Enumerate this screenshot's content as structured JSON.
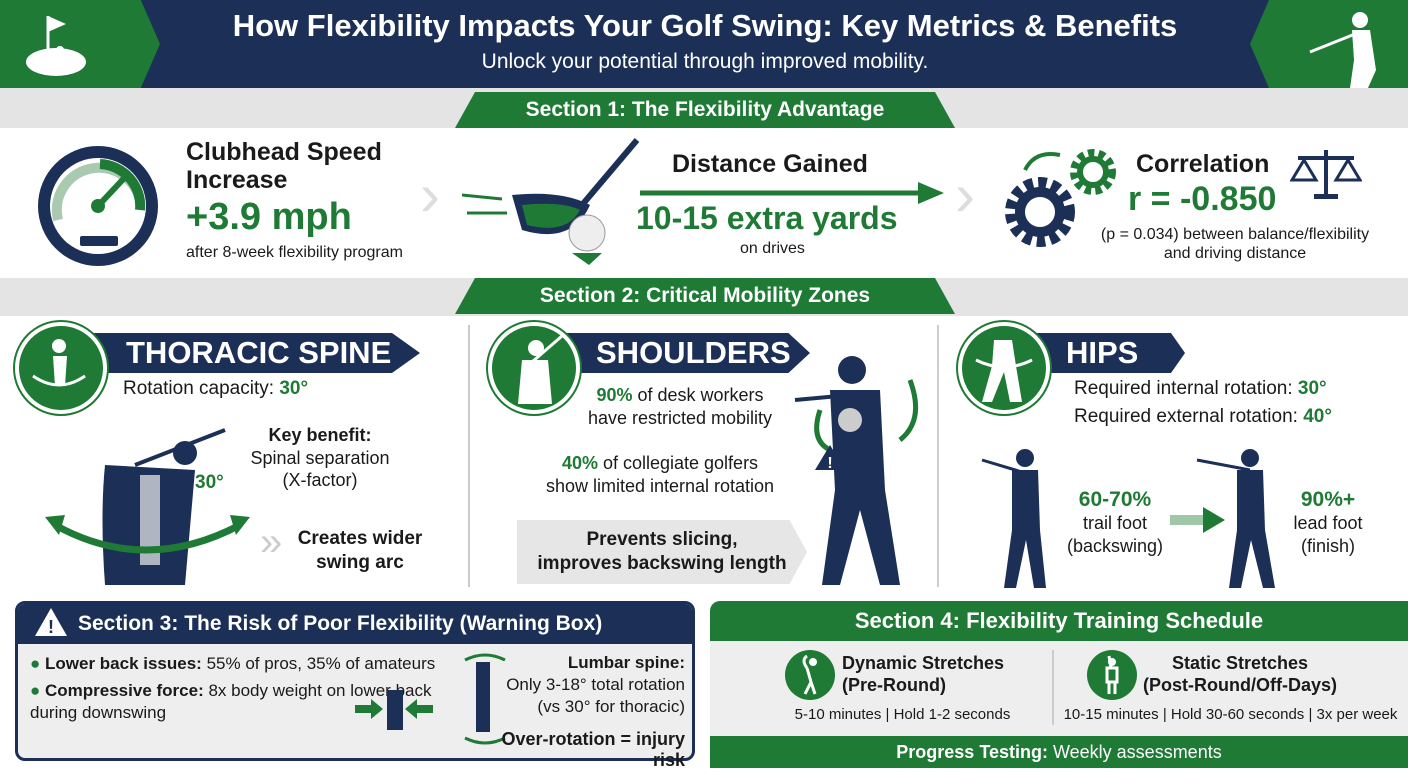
{
  "header": {
    "title": "How Flexibility Impacts Your Golf Swing: Key Metrics & Benefits",
    "subtitle": "Unlock your potential through improved mobility.",
    "left_icon": "golf-flag-icon",
    "right_icon": "golfer-silhouette-icon"
  },
  "colors": {
    "navy": "#1b2f57",
    "green": "#1f7a35",
    "band": "#e4e4e4"
  },
  "section1": {
    "title": "Section 1: The Flexibility Advantage",
    "speed": {
      "label": "Clubhead Speed Increase",
      "value": "+3.9 mph",
      "note": "after 8-week flexibility program",
      "icon": "speedometer-icon"
    },
    "distance": {
      "label": "Distance Gained",
      "value": "10-15 extra yards",
      "note": "on drives",
      "icon": "golf-club-ball-icon"
    },
    "correlation": {
      "label": "Correlation",
      "value": "r = -0.850",
      "note1": "(p = 0.034) between balance/flexibility",
      "note2": "and driving distance",
      "icon": "gears-icon",
      "icon2": "scales-icon"
    }
  },
  "section2": {
    "title": "Section 2: Critical Mobility Zones",
    "thoracic": {
      "title": "THORACIC SPINE",
      "capacity_label": "Rotation capacity: ",
      "capacity": "30°",
      "angle": "30°",
      "benefit_label": "Key benefit:",
      "benefit1": "Spinal separation",
      "benefit2": "(X-factor)",
      "result1": "Creates wider",
      "result2": "swing arc"
    },
    "shoulders": {
      "title": "SHOULDERS",
      "stat1_pct": "90%",
      "stat1a": " of desk workers",
      "stat1b": "have restricted mobility",
      "stat2_pct": "40%",
      "stat2a": " of collegiate golfers",
      "stat2b": "show limited internal rotation",
      "benefit1": "Prevents slicing,",
      "benefit2": "improves backswing length"
    },
    "hips": {
      "title": "HIPS",
      "internal_label": "Required internal rotation: ",
      "internal": "30°",
      "external_label": "Required external rotation: ",
      "external": "40°",
      "trail_pct": "60-70%",
      "trail1": "trail foot",
      "trail2": "(backswing)",
      "lead_pct": "90%+",
      "lead1": "lead foot",
      "lead2": "(finish)"
    }
  },
  "section3": {
    "title": "Section 3: The Risk of Poor Flexibility (Warning Box)",
    "b1_label": "Lower back issues:",
    "b1_text": " 55% of pros, 35% of amateurs",
    "b2_label": "Compressive force:",
    "b2_text": " 8x body weight on lower back",
    "b2_cont": "during downswing",
    "lumbar_label": "Lumbar spine:",
    "lumbar1": "Only 3-18° total rotation",
    "lumbar2": "(vs 30° for thoracic)",
    "risk": "Over-rotation = injury risk"
  },
  "section4": {
    "title": "Section 4: Flexibility Training Schedule",
    "dynamic": {
      "title1": "Dynamic Stretches",
      "title2": "(Pre-Round)",
      "detail": "5-10 minutes | Hold 1-2 seconds"
    },
    "static": {
      "title1": "Static Stretches",
      "title2": "(Post-Round/Off-Days)",
      "detail": "10-15 minutes | Hold 30-60 seconds | 3x per week"
    },
    "footer_label": "Progress Testing:",
    "footer_text": " Weekly assessments"
  }
}
